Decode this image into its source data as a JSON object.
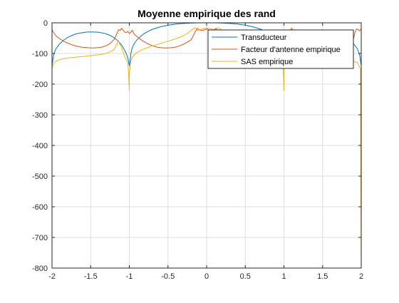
{
  "chart_data": {
    "type": "line",
    "title": "Moyenne empirique des rand",
    "xlabel": "",
    "ylabel": "",
    "xlim": [
      -2,
      2
    ],
    "ylim": [
      -800,
      0
    ],
    "x_ticks": [
      -2,
      -1.5,
      -1,
      -0.5,
      0,
      0.5,
      1,
      1.5,
      2
    ],
    "y_ticks": [
      0,
      -100,
      -200,
      -300,
      -400,
      -500,
      -600,
      -700,
      -800
    ],
    "x_tick_labels": [
      "-2",
      "-1.5",
      "-1",
      "-0.5",
      "0",
      "0.5",
      "1",
      "1.5",
      "2"
    ],
    "y_tick_labels": [
      "0",
      "-100",
      "-200",
      "-300",
      "-400",
      "-500",
      "-600",
      "-700",
      "-800"
    ],
    "grid": true,
    "legend_position": "top-right",
    "series": [
      {
        "name": "Transducteur",
        "color": "#0072BD",
        "x": [
          -2.0,
          -1.98,
          -1.95,
          -1.9,
          -1.85,
          -1.8,
          -1.75,
          -1.7,
          -1.65,
          -1.6,
          -1.55,
          -1.5,
          -1.45,
          -1.4,
          -1.35,
          -1.3,
          -1.25,
          -1.2,
          -1.15,
          -1.1,
          -1.07,
          -1.04,
          -1.02,
          -1.01,
          -1.0,
          -0.99,
          -0.98,
          -0.96,
          -0.93,
          -0.9,
          -0.85,
          -0.8,
          -0.75,
          -0.7,
          -0.6,
          -0.5,
          -0.4,
          -0.3,
          -0.2,
          -0.1,
          0.0,
          0.1,
          0.2,
          0.3,
          0.4,
          0.5,
          0.6,
          0.7,
          0.75,
          0.8,
          0.85,
          0.9,
          0.93,
          0.96,
          0.98,
          0.99,
          1.0,
          1.01,
          1.02,
          1.04,
          1.07,
          1.1,
          1.15,
          1.2,
          1.25,
          1.3,
          1.35,
          1.4,
          1.45,
          1.5,
          1.55,
          1.6,
          1.65,
          1.7,
          1.75,
          1.8,
          1.85,
          1.9,
          1.95,
          1.98,
          2.0
        ],
        "y": [
          -140,
          -105,
          -85,
          -68,
          -57,
          -48,
          -42,
          -37,
          -34,
          -32,
          -30,
          -30,
          -30,
          -31,
          -33,
          -36,
          -41,
          -48,
          -58,
          -72,
          -85,
          -100,
          -115,
          -125,
          -140,
          -125,
          -100,
          -80,
          -65,
          -55,
          -43,
          -34,
          -27,
          -21,
          -13,
          -8,
          -4,
          -2,
          -0.5,
          0,
          0,
          0,
          -0.5,
          -2,
          -4,
          -8,
          -13,
          -21,
          -27,
          -34,
          -43,
          -55,
          -65,
          -80,
          -100,
          -125,
          -140,
          -125,
          -115,
          -100,
          -85,
          -72,
          -58,
          -48,
          -41,
          -36,
          -33,
          -31,
          -30,
          -30,
          -30,
          -32,
          -34,
          -37,
          -42,
          -48,
          -57,
          -68,
          -85,
          -105,
          -140
        ]
      },
      {
        "name": "Facteur d'antenne empirique",
        "color": "#D95319",
        "x": [
          -2.0,
          -1.99,
          -1.97,
          -1.95,
          -1.9,
          -1.85,
          -1.8,
          -1.75,
          -1.7,
          -1.65,
          -1.6,
          -1.55,
          -1.5,
          -1.45,
          -1.4,
          -1.35,
          -1.3,
          -1.25,
          -1.2,
          -1.18,
          -1.16,
          -1.14,
          -1.12,
          -1.1,
          -1.08,
          -1.06,
          -1.04,
          -1.02,
          -1.0,
          -0.98,
          -0.96,
          -0.94,
          -0.9,
          -0.85,
          -0.8,
          -0.75,
          -0.7,
          -0.65,
          -0.6,
          -0.55,
          -0.5,
          -0.45,
          -0.4,
          -0.35,
          -0.3,
          -0.25,
          -0.2,
          -0.18,
          -0.16,
          -0.14,
          -0.12,
          -0.1,
          -0.08,
          -0.06,
          -0.04,
          -0.02,
          0.0,
          0.02,
          0.04,
          0.06,
          0.08,
          0.1,
          0.12,
          0.14,
          0.16,
          0.18,
          0.2,
          0.25,
          0.3,
          0.35,
          0.4,
          0.45,
          0.5,
          0.55,
          0.6,
          0.65,
          0.7,
          0.75,
          0.8,
          0.85,
          0.9,
          0.94,
          0.96,
          0.98,
          1.0,
          1.02,
          1.04,
          1.06,
          1.08,
          1.1,
          1.12,
          1.14,
          1.16,
          1.18,
          1.2,
          1.25,
          1.3,
          1.35,
          1.4,
          1.45,
          1.5,
          1.55,
          1.6,
          1.65,
          1.7,
          1.75,
          1.8,
          1.85,
          1.9,
          1.92,
          1.94,
          1.96,
          1.98,
          2.0
        ],
        "y": [
          -20,
          -28,
          -35,
          -42,
          -52,
          -60,
          -66,
          -71,
          -75,
          -78,
          -80,
          -81,
          -82,
          -82,
          -81,
          -79,
          -75,
          -68,
          -55,
          -46,
          -35,
          -22,
          -25,
          -18,
          -24,
          -30,
          -32,
          -28,
          -35,
          -30,
          -24,
          -36,
          -45,
          -55,
          -63,
          -70,
          -75,
          -79,
          -81,
          -82,
          -82,
          -81,
          -79,
          -75,
          -70,
          -63,
          -55,
          -45,
          -36,
          -26,
          -18,
          -22,
          -24,
          -25,
          -24,
          -22,
          -20,
          -22,
          -24,
          -25,
          -24,
          -22,
          -18,
          -26,
          -36,
          -45,
          -55,
          -63,
          -70,
          -75,
          -79,
          -81,
          -82,
          -82,
          -81,
          -79,
          -75,
          -70,
          -63,
          -55,
          -45,
          -36,
          -24,
          -30,
          -35,
          -28,
          -32,
          -30,
          -24,
          -18,
          -25,
          -22,
          -35,
          -46,
          -55,
          -68,
          -75,
          -79,
          -81,
          -82,
          -82,
          -81,
          -80,
          -78,
          -75,
          -71,
          -66,
          -60,
          -52,
          -30,
          -20,
          -22,
          -26,
          -20
        ]
      },
      {
        "name": "SAS empirique",
        "color": "#EDB120",
        "x": [
          -2.0,
          -2.0,
          -1.99,
          -1.97,
          -1.95,
          -1.9,
          -1.85,
          -1.8,
          -1.7,
          -1.6,
          -1.5,
          -1.4,
          -1.3,
          -1.25,
          -1.2,
          -1.16,
          -1.14,
          -1.12,
          -1.1,
          -1.08,
          -1.06,
          -1.04,
          -1.02,
          -1.01,
          -1.0,
          -1.0,
          -0.99,
          -0.98,
          -0.96,
          -0.94,
          -0.9,
          -0.85,
          -0.8,
          -0.7,
          -0.6,
          -0.5,
          -0.4,
          -0.3,
          -0.25,
          -0.2,
          -0.18,
          -0.16,
          -0.15,
          -0.14,
          -0.12,
          -0.1,
          -0.06,
          0.0,
          0.06,
          0.1,
          0.12,
          0.14,
          0.15,
          0.16,
          0.18,
          0.2,
          0.25,
          0.3,
          0.4,
          0.5,
          0.6,
          0.7,
          0.8,
          0.85,
          0.9,
          0.94,
          0.96,
          0.98,
          0.99,
          1.0,
          1.0,
          1.01,
          1.02,
          1.04,
          1.06,
          1.08,
          1.1,
          1.12,
          1.14,
          1.16,
          1.2,
          1.25,
          1.3,
          1.4,
          1.5,
          1.6,
          1.7,
          1.8,
          1.85,
          1.9,
          1.95,
          1.97,
          1.99,
          2.0,
          2.0
        ],
        "y": [
          -800,
          -150,
          -140,
          -130,
          -125,
          -120,
          -117,
          -115,
          -112,
          -110,
          -107,
          -104,
          -100,
          -95,
          -88,
          -70,
          -58,
          -72,
          -80,
          -95,
          -110,
          -120,
          -130,
          -160,
          -220,
          -170,
          -140,
          -125,
          -112,
          -105,
          -97,
          -90,
          -84,
          -75,
          -68,
          -60,
          -52,
          -42,
          -35,
          -25,
          -20,
          -18,
          -16,
          -18,
          -25,
          -24,
          -20,
          -17,
          -20,
          -24,
          -25,
          -18,
          -16,
          -18,
          -20,
          -25,
          -35,
          -42,
          -52,
          -60,
          -68,
          -75,
          -84,
          -90,
          -97,
          -105,
          -112,
          -125,
          -140,
          -220,
          -160,
          -130,
          -120,
          -110,
          -95,
          -80,
          -72,
          -58,
          -70,
          -88,
          -95,
          -100,
          -104,
          -107,
          -110,
          -112,
          -115,
          -117,
          -120,
          -125,
          -130,
          -140,
          -150,
          -800,
          -150
        ]
      }
    ]
  }
}
